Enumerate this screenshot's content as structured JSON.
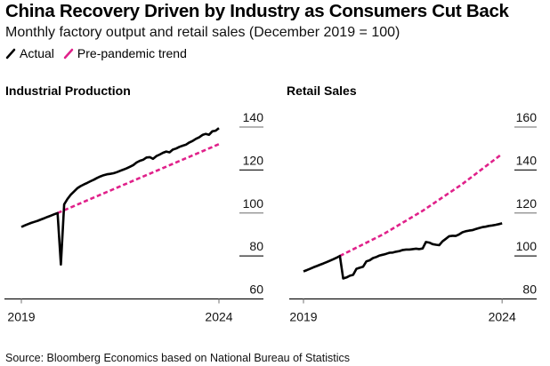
{
  "header": {
    "title": "China Recovery Driven by Industry as Consumers Cut Back",
    "subtitle": "Monthly factory output and retail sales (December 2019 = 100)"
  },
  "legend": [
    {
      "label": "Actual",
      "color": "#000000",
      "style": "solid"
    },
    {
      "label": "Pre-pandemic trend",
      "color": "#e0218a",
      "style": "dashed"
    }
  ],
  "source": "Source: Bloomberg Economics based on National Bureau of Statistics",
  "chart_data": [
    {
      "type": "line",
      "title": "Industrial Production",
      "xlabel": "",
      "ylabel": "",
      "x_ticks": [
        "2019",
        "2024"
      ],
      "y_ticks": [
        60,
        80,
        100,
        120,
        140
      ],
      "ylim": [
        60,
        140
      ],
      "xlim_months": [
        0,
        65
      ],
      "grid": false,
      "y_axis_side": "right",
      "series": [
        {
          "name": "Actual",
          "color": "#000000",
          "x_months": [
            0,
            1,
            2,
            3,
            4,
            5,
            6,
            7,
            8,
            9,
            10,
            11,
            12,
            13,
            14,
            15,
            16,
            17,
            18,
            19,
            20,
            21,
            22,
            23,
            24,
            25,
            26,
            27,
            28,
            29,
            30,
            31,
            32,
            33,
            34,
            35,
            36,
            37,
            38,
            39,
            40,
            41,
            42,
            43,
            44,
            45,
            46,
            47,
            48,
            49,
            50,
            51,
            52,
            53,
            54,
            55,
            56,
            57,
            58,
            59,
            60
          ],
          "values": [
            93.5,
            94.2,
            94.8,
            95.4,
            95.9,
            96.4,
            97.0,
            97.6,
            98.2,
            98.8,
            99.4,
            100.0,
            76.0,
            104.0,
            106.5,
            108.5,
            110.0,
            111.5,
            112.5,
            113.3,
            114.0,
            114.8,
            115.5,
            116.3,
            117.0,
            117.6,
            118.0,
            118.2,
            118.5,
            119.0,
            119.6,
            120.2,
            120.8,
            121.5,
            122.3,
            123.5,
            124.3,
            124.8,
            125.8,
            126.0,
            125.2,
            126.5,
            127.2,
            128.0,
            128.6,
            128.2,
            129.5,
            130.0,
            130.8,
            131.3,
            131.8,
            132.8,
            133.5,
            134.5,
            135.2,
            136.3,
            136.8,
            136.4,
            138.0,
            138.3,
            139.5
          ]
        },
        {
          "name": "Pre-pandemic trend",
          "color": "#e0218a",
          "x_months": [
            11,
            60
          ],
          "values": [
            100.0,
            132.0
          ]
        }
      ]
    },
    {
      "type": "line",
      "title": "Retail Sales",
      "xlabel": "",
      "ylabel": "",
      "x_ticks": [
        "2019",
        "2024"
      ],
      "y_ticks": [
        80,
        100,
        120,
        140,
        160
      ],
      "ylim": [
        80,
        160
      ],
      "xlim_months": [
        0,
        65
      ],
      "grid": false,
      "y_axis_side": "right",
      "series": [
        {
          "name": "Actual",
          "color": "#000000",
          "x_months": [
            0,
            1,
            2,
            3,
            4,
            5,
            6,
            7,
            8,
            9,
            10,
            11,
            12,
            13,
            14,
            15,
            16,
            17,
            18,
            19,
            20,
            21,
            22,
            23,
            24,
            25,
            26,
            27,
            28,
            29,
            30,
            31,
            32,
            33,
            34,
            35,
            36,
            37,
            38,
            39,
            40,
            41,
            42,
            43,
            44,
            45,
            46,
            47,
            48,
            49,
            50,
            51,
            52,
            53,
            54,
            55,
            56,
            57,
            58,
            59,
            60
          ],
          "values": [
            92.8,
            93.4,
            94.0,
            94.7,
            95.3,
            95.9,
            96.5,
            97.1,
            97.8,
            98.5,
            99.2,
            100.0,
            89.5,
            90.0,
            90.8,
            91.2,
            94.0,
            94.5,
            95.0,
            97.5,
            98.0,
            99.0,
            99.5,
            100.2,
            100.6,
            101.0,
            101.5,
            101.6,
            102.0,
            102.3,
            102.8,
            103.0,
            103.0,
            103.2,
            103.4,
            103.2,
            103.5,
            106.5,
            106.2,
            105.5,
            105.2,
            105.0,
            106.8,
            108.0,
            109.2,
            109.4,
            109.3,
            110.0,
            111.0,
            111.5,
            111.8,
            112.0,
            112.5,
            113.0,
            113.4,
            113.6,
            114.0,
            114.2,
            114.5,
            114.8,
            115.2
          ]
        },
        {
          "name": "Pre-pandemic trend",
          "color": "#e0218a",
          "x_months": [
            11,
            24,
            36,
            48,
            60
          ],
          "values": [
            100.0,
            110.0,
            121.0,
            133.5,
            147.5
          ]
        }
      ]
    }
  ]
}
